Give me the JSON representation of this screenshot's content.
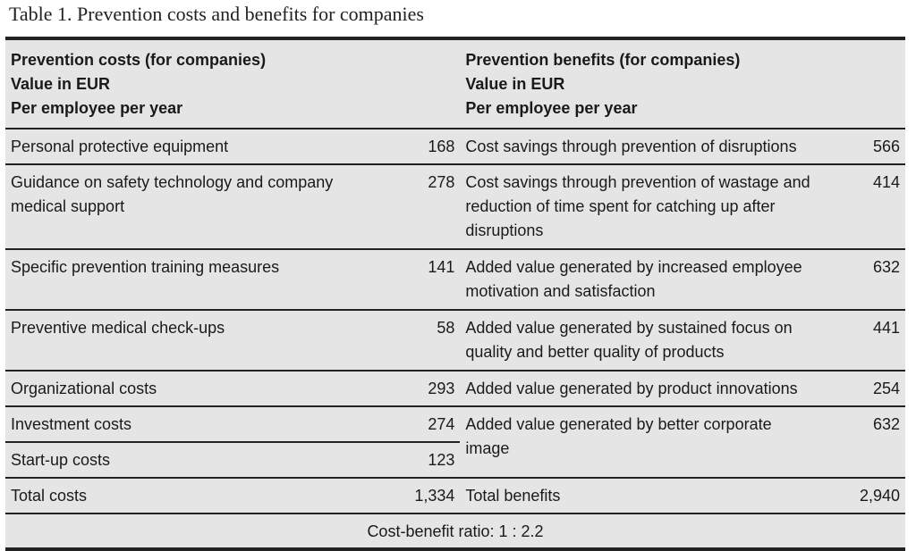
{
  "title": "Table 1. Prevention costs and benefits for companies",
  "header": {
    "costs": [
      "Prevention costs (for companies)",
      "Value in EUR",
      "Per employee per year"
    ],
    "benefits": [
      "Prevention benefits (for companies)",
      "Value in EUR",
      "Per employee per year"
    ]
  },
  "rows": [
    {
      "cost": "Personal protective equipment",
      "cost_value": "168",
      "benefit": "Cost savings through prevention of disruptions",
      "benefit_value": "566"
    },
    {
      "cost": "Guidance on safety technology and company medical support",
      "cost_value": "278",
      "benefit": "Cost savings through prevention of wastage and reduction of time spent for catching up after disruptions",
      "benefit_value": "414"
    },
    {
      "cost": "Specific prevention training measures",
      "cost_value": "141",
      "benefit": "Added value generated by increased employee motivation and satisfaction",
      "benefit_value": "632"
    },
    {
      "cost": "Preventive medical check-ups",
      "cost_value": "58",
      "benefit": "Added value generated by sustained focus on quality and better quality of products",
      "benefit_value": "441"
    },
    {
      "cost": "Organizational costs",
      "cost_value": "293",
      "benefit": "Added value generated by product innovations",
      "benefit_value": "254"
    },
    {
      "cost": "Investment costs",
      "cost_value": "274",
      "benefit": "Added value generated by better corporate image",
      "benefit_value": "632"
    },
    {
      "cost": "Start-up costs",
      "cost_value": "123"
    }
  ],
  "totals": {
    "cost_label": "Total costs",
    "cost_value": "1,334",
    "benefit_label": "Total benefits",
    "benefit_value": "2,940"
  },
  "ratio": "Cost-benefit ratio: 1 : 2.2"
}
